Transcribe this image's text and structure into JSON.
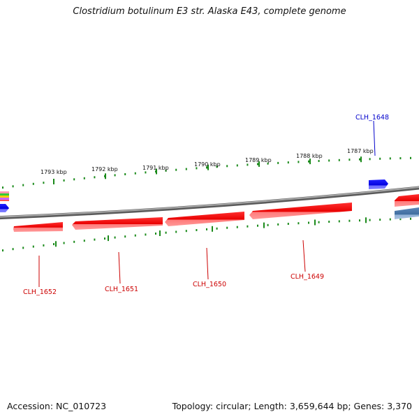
{
  "title": "Clostridium botulinum E3 str. Alaska E43, complete genome",
  "footer": {
    "accession": "Accession: NC_010723",
    "stats": "Topology: circular; Length: 3,659,644 bp; Genes: 3,370"
  },
  "scale_labels": [
    "1793 kbp",
    "1792 kbp",
    "1791 kbp",
    "1790 kbp",
    "1789 kbp",
    "1788 kbp",
    "1787 kbp"
  ],
  "genes": [
    {
      "name": "CLH_1648",
      "strand": "forward",
      "color": "#0000dd"
    },
    {
      "name": "CLH_1649",
      "strand": "reverse",
      "color": "#cc0000"
    },
    {
      "name": "CLH_1650",
      "strand": "reverse",
      "color": "#cc0000"
    },
    {
      "name": "CLH_1651",
      "strand": "reverse",
      "color": "#cc0000"
    },
    {
      "name": "CLH_1652",
      "strand": "reverse",
      "color": "#cc0000"
    }
  ],
  "colors": {
    "backbone": "#888888",
    "reverse_gene": "#ff0000",
    "forward_gene": "#0000ee",
    "tick": "#1a8a1a",
    "forward_label": "#0000cc",
    "reverse_label": "#cc0000",
    "rna_gene": "#4477aa"
  }
}
